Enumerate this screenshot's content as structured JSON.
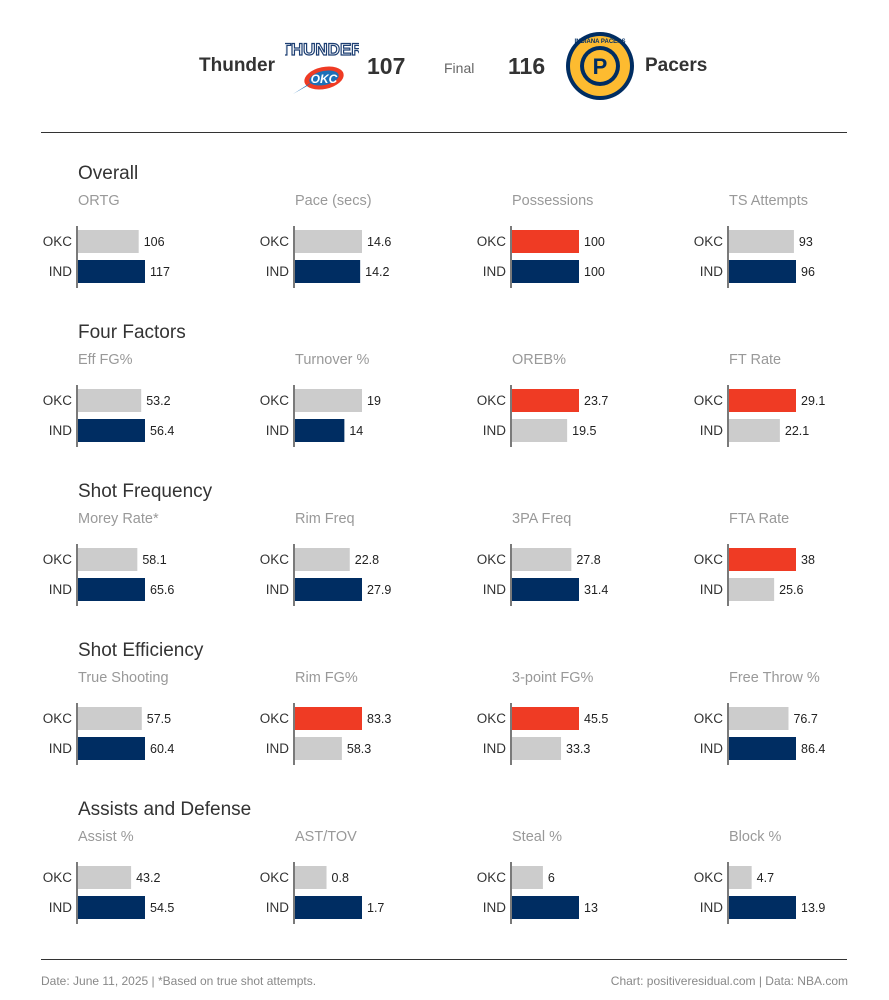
{
  "header": {
    "away_team": "Thunder",
    "away_score": "107",
    "status": "Final",
    "home_score": "116",
    "home_team": "Pacers",
    "away_logo_text": "THUNDER",
    "away_logo_sub": "OKC",
    "home_logo_text": "INDIANA PACERS",
    "home_logo_letter": "P"
  },
  "colors": {
    "neutral": "#cccccc",
    "okc_highlight": "#ef3b24",
    "ind_highlight": "#002d62",
    "axis": "#333333"
  },
  "footer": {
    "left": "Date:  June 11, 2025  | *Based on true shot attempts.",
    "right": "Chart: positiveresidual.com  |  Data: NBA.com"
  },
  "chart_data": {
    "type": "bar",
    "orientation": "horizontal",
    "teams": [
      "OKC",
      "IND"
    ],
    "sections": [
      {
        "title": "Overall",
        "metrics": [
          {
            "name": "ORTG",
            "okc": 106,
            "ind": 117,
            "okc_label": "106",
            "ind_label": "117",
            "okc_hl": false,
            "ind_hl": true,
            "max": 117
          },
          {
            "name": "Pace (secs)",
            "okc": 14.6,
            "ind": 14.2,
            "okc_label": "14.6",
            "ind_label": "14.2",
            "okc_hl": false,
            "ind_hl": true,
            "max": 14.6
          },
          {
            "name": "Possessions",
            "okc": 100,
            "ind": 100,
            "okc_label": "100",
            "ind_label": "100",
            "okc_hl": true,
            "ind_hl": true,
            "max": 100
          },
          {
            "name": "TS Attempts",
            "okc": 93,
            "ind": 96,
            "okc_label": "93",
            "ind_label": "96",
            "okc_hl": false,
            "ind_hl": true,
            "max": 96
          }
        ]
      },
      {
        "title": "Four Factors",
        "metrics": [
          {
            "name": "Eff FG%",
            "okc": 53.2,
            "ind": 56.4,
            "okc_label": "53.2",
            "ind_label": "56.4",
            "okc_hl": false,
            "ind_hl": true,
            "max": 56.4
          },
          {
            "name": "Turnover %",
            "okc": 19,
            "ind": 14,
            "okc_label": "19",
            "ind_label": "14",
            "okc_hl": false,
            "ind_hl": true,
            "max": 19
          },
          {
            "name": "OREB%",
            "okc": 23.7,
            "ind": 19.5,
            "okc_label": "23.7",
            "ind_label": "19.5",
            "okc_hl": true,
            "ind_hl": false,
            "max": 23.7
          },
          {
            "name": "FT Rate",
            "okc": 29.1,
            "ind": 22.1,
            "okc_label": "29.1",
            "ind_label": "22.1",
            "okc_hl": true,
            "ind_hl": false,
            "max": 29.1
          }
        ]
      },
      {
        "title": "Shot Frequency",
        "metrics": [
          {
            "name": "Morey Rate*",
            "okc": 58.1,
            "ind": 65.6,
            "okc_label": "58.1",
            "ind_label": "65.6",
            "okc_hl": false,
            "ind_hl": true,
            "max": 65.6
          },
          {
            "name": "Rim Freq",
            "okc": 22.8,
            "ind": 27.9,
            "okc_label": "22.8",
            "ind_label": "27.9",
            "okc_hl": false,
            "ind_hl": true,
            "max": 27.9
          },
          {
            "name": "3PA Freq",
            "okc": 27.8,
            "ind": 31.4,
            "okc_label": "27.8",
            "ind_label": "31.4",
            "okc_hl": false,
            "ind_hl": true,
            "max": 31.4
          },
          {
            "name": "FTA Rate",
            "okc": 38,
            "ind": 25.6,
            "okc_label": "38",
            "ind_label": "25.6",
            "okc_hl": true,
            "ind_hl": false,
            "max": 38
          }
        ]
      },
      {
        "title": "Shot Efficiency",
        "metrics": [
          {
            "name": "True Shooting",
            "okc": 57.5,
            "ind": 60.4,
            "okc_label": "57.5",
            "ind_label": "60.4",
            "okc_hl": false,
            "ind_hl": true,
            "max": 60.4
          },
          {
            "name": "Rim FG%",
            "okc": 83.3,
            "ind": 58.3,
            "okc_label": "83.3",
            "ind_label": "58.3",
            "okc_hl": true,
            "ind_hl": false,
            "max": 83.3
          },
          {
            "name": "3-point FG%",
            "okc": 45.5,
            "ind": 33.3,
            "okc_label": "45.5",
            "ind_label": "33.3",
            "okc_hl": true,
            "ind_hl": false,
            "max": 45.5
          },
          {
            "name": "Free Throw %",
            "okc": 76.7,
            "ind": 86.4,
            "okc_label": "76.7",
            "ind_label": "86.4",
            "okc_hl": false,
            "ind_hl": true,
            "max": 86.4
          }
        ]
      },
      {
        "title": "Assists and Defense",
        "metrics": [
          {
            "name": "Assist %",
            "okc": 43.2,
            "ind": 54.5,
            "okc_label": "43.2",
            "ind_label": "54.5",
            "okc_hl": false,
            "ind_hl": true,
            "max": 54.5
          },
          {
            "name": "AST/TOV",
            "okc": 0.8,
            "ind": 1.7,
            "okc_label": "0.8",
            "ind_label": "1.7",
            "okc_hl": false,
            "ind_hl": true,
            "max": 1.7
          },
          {
            "name": "Steal %",
            "okc": 6,
            "ind": 13,
            "okc_label": "6",
            "ind_label": "13",
            "okc_hl": false,
            "ind_hl": true,
            "max": 13
          },
          {
            "name": "Block %",
            "okc": 4.7,
            "ind": 13.9,
            "okc_label": "4.7",
            "ind_label": "13.9",
            "okc_hl": false,
            "ind_hl": true,
            "max": 13.9
          }
        ]
      }
    ]
  }
}
